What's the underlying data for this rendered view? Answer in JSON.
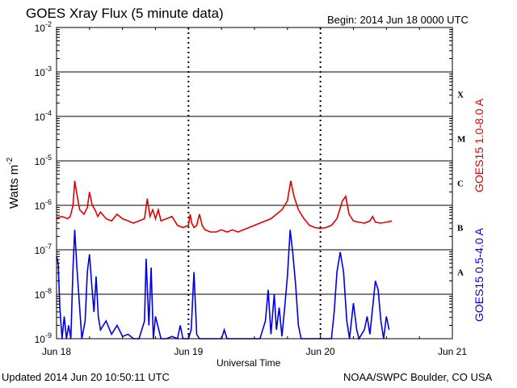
{
  "header": {
    "title": "GOES Xray Flux (5 minute data)",
    "begin_label": "Begin:  2014 Jun 18 0000 UTC"
  },
  "footer": {
    "updated": "Updated 2014 Jun 20 10:50:11 UTC",
    "credit": "NOAA/SWPC Boulder, CO USA"
  },
  "colors": {
    "long_channel": "#e00000",
    "short_channel": "#0000e0"
  },
  "chart_data": {
    "type": "line",
    "xlabel": "Universal Time",
    "ylabel": "Watts m",
    "ylabel_sup": "-2",
    "y_scale": "log",
    "ylim_exp": [
      -9,
      -2
    ],
    "y_ticks": [
      {
        "mant": "10",
        "exp": "-9",
        "value": -9
      },
      {
        "mant": "10",
        "exp": "-8",
        "value": -8
      },
      {
        "mant": "10",
        "exp": "-7",
        "value": -7
      },
      {
        "mant": "10",
        "exp": "-6",
        "value": -6
      },
      {
        "mant": "10",
        "exp": "-5",
        "value": -5
      },
      {
        "mant": "10",
        "exp": "-4",
        "value": -4
      },
      {
        "mant": "10",
        "exp": "-3",
        "value": -3
      },
      {
        "mant": "10",
        "exp": "-2",
        "value": -2
      }
    ],
    "xlim_hours": [
      0,
      72
    ],
    "x_ticks": [
      {
        "label": "Jun 18",
        "hour": 0
      },
      {
        "label": "Jun 19",
        "hour": 24
      },
      {
        "label": "Jun 20",
        "hour": 48
      },
      {
        "label": "Jun 21",
        "hour": 72
      }
    ],
    "flare_classes": [
      {
        "label": "A",
        "exp": -7.5
      },
      {
        "label": "B",
        "exp": -6.5
      },
      {
        "label": "C",
        "exp": -5.5
      },
      {
        "label": "M",
        "exp": -4.5
      },
      {
        "label": "X",
        "exp": -3.5
      }
    ],
    "grid": true,
    "series": [
      {
        "name": "GOES15 1.0-8.0 A",
        "color": "#e00000",
        "points": [
          [
            0,
            -6.28
          ],
          [
            1,
            -6.25
          ],
          [
            2,
            -6.3
          ],
          [
            2.5,
            -6.25
          ],
          [
            3,
            -6.0
          ],
          [
            3.3,
            -5.45
          ],
          [
            3.7,
            -5.75
          ],
          [
            4.2,
            -6.1
          ],
          [
            5,
            -6.2
          ],
          [
            5.6,
            -6.05
          ],
          [
            6,
            -5.7
          ],
          [
            6.5,
            -6.0
          ],
          [
            7,
            -6.1
          ],
          [
            7.5,
            -6.25
          ],
          [
            8,
            -6.15
          ],
          [
            9,
            -6.3
          ],
          [
            10,
            -6.35
          ],
          [
            11,
            -6.2
          ],
          [
            12,
            -6.3
          ],
          [
            13,
            -6.35
          ],
          [
            14,
            -6.4
          ],
          [
            15,
            -6.35
          ],
          [
            16,
            -6.3
          ],
          [
            16.5,
            -5.85
          ],
          [
            17,
            -6.25
          ],
          [
            17.5,
            -6.1
          ],
          [
            18,
            -6.3
          ],
          [
            18.5,
            -6.1
          ],
          [
            19,
            -6.35
          ],
          [
            20,
            -6.3
          ],
          [
            21,
            -6.25
          ],
          [
            22,
            -6.45
          ],
          [
            23,
            -6.5
          ],
          [
            24,
            -6.45
          ],
          [
            24.3,
            -6.2
          ],
          [
            24.6,
            -6.4
          ],
          [
            25,
            -6.5
          ],
          [
            25.5,
            -6.45
          ],
          [
            26,
            -6.2
          ],
          [
            26.5,
            -6.45
          ],
          [
            27,
            -6.55
          ],
          [
            28,
            -6.6
          ],
          [
            29,
            -6.6
          ],
          [
            30,
            -6.55
          ],
          [
            31,
            -6.6
          ],
          [
            32,
            -6.55
          ],
          [
            33,
            -6.6
          ],
          [
            34,
            -6.55
          ],
          [
            35,
            -6.5
          ],
          [
            36,
            -6.45
          ],
          [
            37,
            -6.4
          ],
          [
            38,
            -6.35
          ],
          [
            39,
            -6.3
          ],
          [
            40,
            -6.2
          ],
          [
            41,
            -6.1
          ],
          [
            42,
            -5.9
          ],
          [
            42.6,
            -5.45
          ],
          [
            43.2,
            -5.8
          ],
          [
            44,
            -6.1
          ],
          [
            45,
            -6.3
          ],
          [
            46,
            -6.45
          ],
          [
            47,
            -6.5
          ],
          [
            48,
            -6.52
          ],
          [
            49,
            -6.5
          ],
          [
            50,
            -6.45
          ],
          [
            51,
            -6.3
          ],
          [
            52,
            -5.9
          ],
          [
            52.6,
            -5.8
          ],
          [
            53.2,
            -6.2
          ],
          [
            54,
            -6.35
          ],
          [
            55,
            -6.38
          ],
          [
            56,
            -6.4
          ],
          [
            57,
            -6.35
          ],
          [
            57.5,
            -6.25
          ],
          [
            58,
            -6.38
          ],
          [
            59,
            -6.4
          ],
          [
            60,
            -6.38
          ],
          [
            61,
            -6.35
          ]
        ]
      },
      {
        "name": "GOES15 0.5-4.0 A",
        "color": "#0000e0",
        "points": [
          [
            0,
            -7.15
          ],
          [
            0.3,
            -7.3
          ],
          [
            0.6,
            -8.3
          ],
          [
            1,
            -9.0
          ],
          [
            1.4,
            -8.5
          ],
          [
            1.8,
            -9.0
          ],
          [
            2.2,
            -8.7
          ],
          [
            2.6,
            -9.0
          ],
          [
            3,
            -7.4
          ],
          [
            3.3,
            -6.55
          ],
          [
            3.7,
            -7.4
          ],
          [
            4.2,
            -8.3
          ],
          [
            4.6,
            -9.0
          ],
          [
            5.2,
            -8.6
          ],
          [
            5.6,
            -7.5
          ],
          [
            6,
            -7.1
          ],
          [
            6.4,
            -7.8
          ],
          [
            6.8,
            -8.4
          ],
          [
            7.2,
            -7.6
          ],
          [
            7.6,
            -8.5
          ],
          [
            8,
            -8.8
          ],
          [
            9,
            -8.6
          ],
          [
            10,
            -8.9
          ],
          [
            11,
            -8.7
          ],
          [
            12,
            -8.95
          ],
          [
            13,
            -8.9
          ],
          [
            14,
            -9.0
          ],
          [
            15,
            -9.0
          ],
          [
            16,
            -8.6
          ],
          [
            16.3,
            -7.2
          ],
          [
            16.8,
            -8.7
          ],
          [
            17.2,
            -7.4
          ],
          [
            17.6,
            -9.0
          ],
          [
            18,
            -8.5
          ],
          [
            19,
            -9.0
          ],
          [
            20,
            -9.0
          ],
          [
            21,
            -8.95
          ],
          [
            22,
            -9.0
          ],
          [
            22.5,
            -8.7
          ],
          [
            23,
            -9.0
          ],
          [
            24,
            -9.0
          ],
          [
            24.5,
            -8.8
          ],
          [
            25,
            -7.5
          ],
          [
            25.5,
            -8.9
          ],
          [
            26,
            -9.0
          ],
          [
            30,
            -9.0
          ],
          [
            30.5,
            -8.8
          ],
          [
            31,
            -9.0
          ],
          [
            35,
            -9.0
          ],
          [
            37,
            -9.0
          ],
          [
            38,
            -8.6
          ],
          [
            38.5,
            -7.9
          ],
          [
            39,
            -8.9
          ],
          [
            39.6,
            -8.0
          ],
          [
            40,
            -8.8
          ],
          [
            40.5,
            -8.3
          ],
          [
            41,
            -8.95
          ],
          [
            41.5,
            -8.3
          ],
          [
            42,
            -7.6
          ],
          [
            42.5,
            -6.55
          ],
          [
            43,
            -7.1
          ],
          [
            43.5,
            -7.8
          ],
          [
            44,
            -8.7
          ],
          [
            44.5,
            -9.0
          ],
          [
            47,
            -9.0
          ],
          [
            48,
            -9.0
          ],
          [
            50,
            -9.0
          ],
          [
            50.5,
            -8.4
          ],
          [
            51,
            -7.5
          ],
          [
            51.6,
            -7.05
          ],
          [
            52.2,
            -7.5
          ],
          [
            52.8,
            -8.6
          ],
          [
            53.3,
            -9.0
          ],
          [
            54,
            -8.2
          ],
          [
            54.6,
            -8.8
          ],
          [
            55,
            -9.0
          ],
          [
            56,
            -8.8
          ],
          [
            56.5,
            -8.5
          ],
          [
            57,
            -8.9
          ],
          [
            57.5,
            -8.3
          ],
          [
            58,
            -7.7
          ],
          [
            58.5,
            -7.9
          ],
          [
            59,
            -8.6
          ],
          [
            59.5,
            -9.0
          ],
          [
            60,
            -8.5
          ],
          [
            60.5,
            -8.8
          ]
        ]
      }
    ]
  }
}
